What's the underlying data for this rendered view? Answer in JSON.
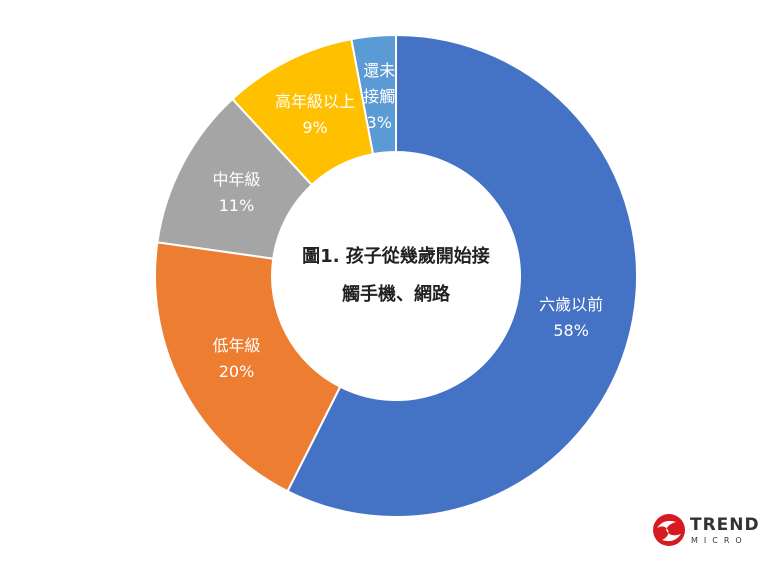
{
  "chart_data": {
    "type": "donut",
    "title": "圖1. 孩子從幾歲開始接觸手機、網路",
    "categories": [
      "六歲以前",
      "低年級",
      "中年級",
      "高年級以上",
      "還未接觸"
    ],
    "values": [
      58,
      20,
      11,
      9,
      3
    ],
    "value_labels": [
      "58%",
      "20%",
      "11%",
      "9%",
      "3%"
    ],
    "colors": [
      "#4472c4",
      "#ed7d31",
      "#a5a5a5",
      "#ffc000",
      "#5b9bd5"
    ]
  },
  "logo": {
    "text": "TREND",
    "subtext": "MICRO"
  }
}
